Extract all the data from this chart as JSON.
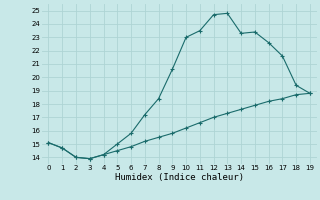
{
  "title": "",
  "xlabel": "Humidex (Indice chaleur)",
  "background_color": "#c8e8e8",
  "grid_color": "#aed4d4",
  "line_color": "#1a6b6b",
  "x_upper": [
    0,
    1,
    2,
    3,
    4,
    5,
    6,
    7,
    8,
    9,
    10,
    11,
    12,
    13,
    14,
    15,
    16,
    17,
    18,
    19
  ],
  "y_upper": [
    15.1,
    14.7,
    14.0,
    13.9,
    14.2,
    15.0,
    15.8,
    17.2,
    18.4,
    20.6,
    23.0,
    23.5,
    24.7,
    24.8,
    23.3,
    23.4,
    22.6,
    21.6,
    19.4,
    18.8
  ],
  "x_lower": [
    0,
    1,
    2,
    3,
    4,
    5,
    6,
    7,
    8,
    9,
    10,
    11,
    12,
    13,
    14,
    15,
    16,
    17,
    18,
    19
  ],
  "y_lower": [
    15.1,
    14.7,
    14.0,
    13.9,
    14.2,
    14.5,
    14.8,
    15.2,
    15.5,
    15.8,
    16.2,
    16.6,
    17.0,
    17.3,
    17.6,
    17.9,
    18.2,
    18.4,
    18.7,
    18.8
  ],
  "ylim": [
    13.5,
    25.5
  ],
  "xlim": [
    -0.5,
    19.5
  ],
  "yticks": [
    14,
    15,
    16,
    17,
    18,
    19,
    20,
    21,
    22,
    23,
    24,
    25
  ],
  "xticks": [
    0,
    1,
    2,
    3,
    4,
    5,
    6,
    7,
    8,
    9,
    10,
    11,
    12,
    13,
    14,
    15,
    16,
    17,
    18,
    19
  ],
  "tick_fontsize": 5,
  "xlabel_fontsize": 6.5,
  "marker_size": 2.5,
  "line_width": 0.8
}
